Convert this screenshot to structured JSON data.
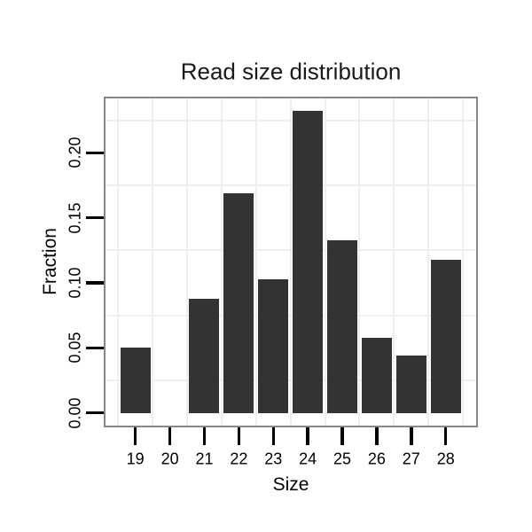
{
  "chart_data": {
    "type": "bar",
    "title": "Read size distribution",
    "xlabel": "Size",
    "ylabel": "Fraction",
    "categories": [
      "19",
      "20",
      "21",
      "22",
      "23",
      "24",
      "25",
      "26",
      "27",
      "28"
    ],
    "values": [
      0.05,
      0,
      0.088,
      0.169,
      0.103,
      0.232,
      0.133,
      0.058,
      0.044,
      0.118
    ],
    "y_tick_values": [
      0.0,
      0.05,
      0.1,
      0.15,
      0.2
    ],
    "y_tick_labels": [
      "0.00",
      "0.05",
      "0.10",
      "0.15",
      "0.20"
    ],
    "ylim": [
      -0.01,
      0.242
    ],
    "grid": {
      "h_minor_lines": [
        0.025,
        0.075,
        0.125,
        0.175,
        0.225
      ],
      "v_lines_at_category_boundaries": true
    },
    "legend": "none",
    "colors": {
      "bar": "#333333",
      "panel_border": "#878787",
      "gridline": "#efefef",
      "tick": "#000000",
      "text": "#000000",
      "background": "#ffffff"
    }
  }
}
